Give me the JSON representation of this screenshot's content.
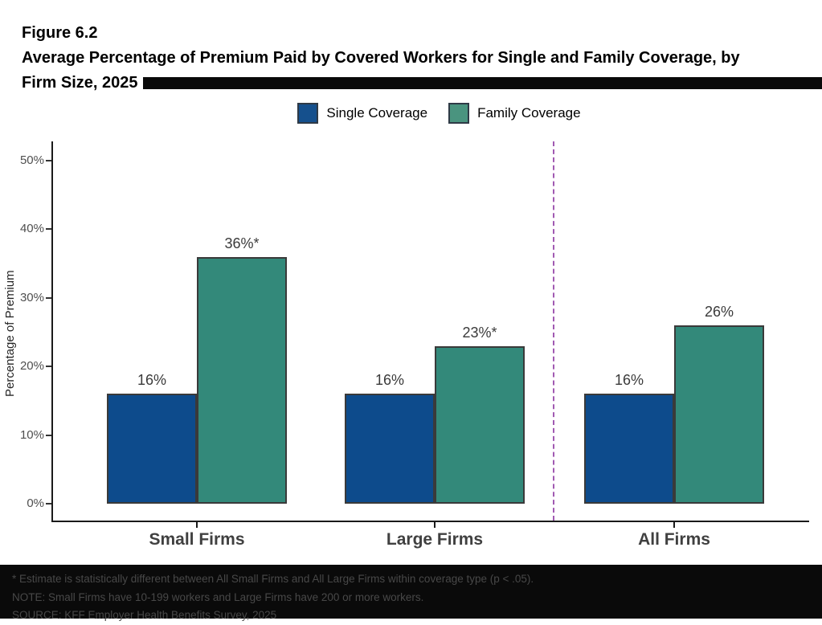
{
  "figure": {
    "label": "Figure 6.2",
    "title_line2": "Average Percentage of Premium Paid by Covered Workers for Single and Family Coverage, by",
    "title_line3": "Firm Size, 2025"
  },
  "legend": [
    {
      "label": "Single Coverage",
      "color": "#15508D"
    },
    {
      "label": "Family Coverage",
      "color": "#4A947F"
    }
  ],
  "chart_data": {
    "type": "bar",
    "title": "Average Percentage of Premium Paid by Covered Workers for Single and Family Coverage, by Firm Size, 2025",
    "categories": [
      "Small Firms",
      "Large Firms",
      "All Firms"
    ],
    "series": [
      {
        "name": "Single Coverage",
        "color": "#0D4B8C",
        "values": [
          16,
          16,
          16
        ],
        "labels": [
          "16%",
          "16%",
          "16%"
        ]
      },
      {
        "name": "Family Coverage",
        "color": "#33897A",
        "values": [
          36,
          23,
          26
        ],
        "labels": [
          "36%*",
          "23%*",
          "26%"
        ]
      }
    ],
    "ylabel": "Percentage of Premium",
    "xlabel": "",
    "ylim": [
      0,
      50
    ],
    "yticks": [
      0,
      10,
      20,
      30,
      40,
      50
    ],
    "ytick_labels": [
      "0%",
      "10%",
      "20%",
      "30%",
      "40%",
      "50%"
    ],
    "grid": false,
    "legend_position": "top",
    "separator": {
      "between": [
        "Large Firms",
        "All Firms"
      ],
      "style": "dashed",
      "color": "#A15AB2"
    }
  },
  "footnotes": {
    "line1": "* Estimate is statistically different between All Small Firms and All Large Firms within coverage type (p < .05).",
    "line2": "NOTE: Small Firms have 10-199 workers and Large Firms have 200 or more workers.",
    "line3": "SOURCE: KFF Employer Health Benefits Survey, 2025"
  }
}
